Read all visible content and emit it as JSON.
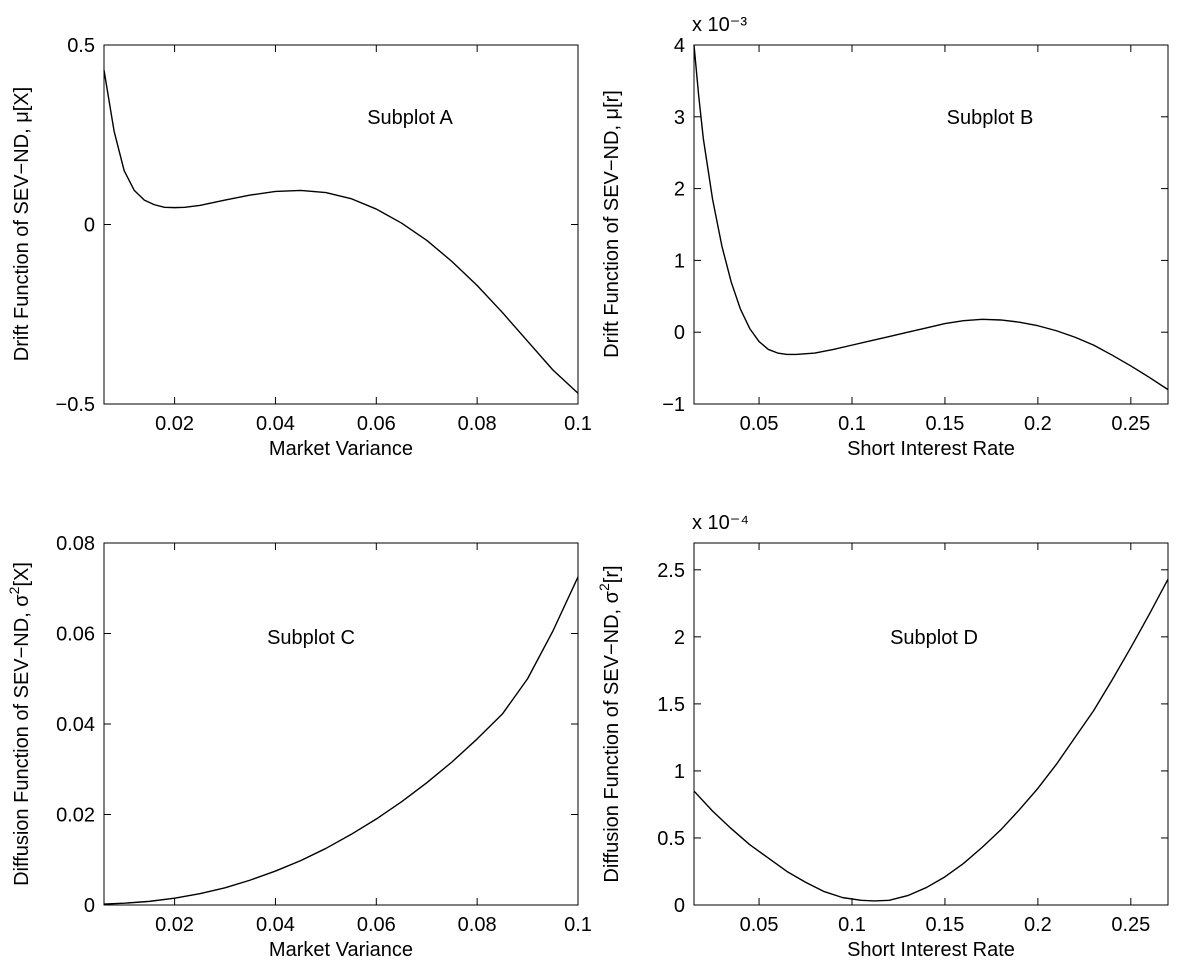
{
  "chart_data": [
    {
      "type": "line",
      "annotation": "Subplot A",
      "xlabel": "Market Variance",
      "ylabel": "Drift Function of SEV−ND, μ[X]",
      "ylabel_sup": "",
      "ylabel_tail": "",
      "exponent_label": "",
      "xlim": [
        0.006,
        0.1
      ],
      "ylim": [
        -0.5,
        0.5
      ],
      "xticks": [
        0.02,
        0.04,
        0.06,
        0.08,
        0.1
      ],
      "xtick_labels": [
        "0.02",
        "0.04",
        "0.06",
        "0.08",
        "0.1"
      ],
      "yticks": [
        -0.5,
        0,
        0.5
      ],
      "ytick_labels": [
        "−0.5",
        "0",
        "0.5"
      ],
      "grid": false,
      "series": [
        {
          "x": [
            0.006,
            0.008,
            0.01,
            0.012,
            0.014,
            0.016,
            0.018,
            0.02,
            0.022,
            0.025,
            0.03,
            0.035,
            0.04,
            0.045,
            0.05,
            0.055,
            0.06,
            0.065,
            0.07,
            0.075,
            0.08,
            0.085,
            0.09,
            0.095,
            0.1
          ],
          "y": [
            0.43,
            0.26,
            0.15,
            0.095,
            0.068,
            0.055,
            0.048,
            0.047,
            0.048,
            0.053,
            0.068,
            0.082,
            0.092,
            0.095,
            0.089,
            0.072,
            0.043,
            0.004,
            -0.044,
            -0.103,
            -0.17,
            -0.245,
            -0.325,
            -0.405,
            -0.47
          ]
        }
      ]
    },
    {
      "type": "line",
      "annotation": "Subplot B",
      "xlabel": "Short Interest Rate",
      "ylabel": "Drift Function of SEV−ND, μ[r]",
      "ylabel_sup": "",
      "ylabel_tail": "",
      "exponent_label": "x 10⁻³",
      "xlim": [
        0.015,
        0.27
      ],
      "ylim": [
        -1,
        4
      ],
      "xticks": [
        0.05,
        0.1,
        0.15,
        0.2,
        0.25
      ],
      "xtick_labels": [
        "0.05",
        "0.1",
        "0.15",
        "0.2",
        "0.25"
      ],
      "yticks": [
        -1,
        0,
        1,
        2,
        3,
        4
      ],
      "ytick_labels": [
        "−1",
        "0",
        "1",
        "2",
        "3",
        "4"
      ],
      "grid": false,
      "series": [
        {
          "x": [
            0.015,
            0.0175,
            0.02,
            0.025,
            0.03,
            0.035,
            0.04,
            0.045,
            0.05,
            0.055,
            0.06,
            0.065,
            0.07,
            0.08,
            0.09,
            0.1,
            0.11,
            0.12,
            0.13,
            0.14,
            0.15,
            0.16,
            0.17,
            0.18,
            0.19,
            0.2,
            0.21,
            0.22,
            0.23,
            0.24,
            0.25,
            0.26,
            0.27
          ],
          "y": [
            4.0,
            3.3,
            2.7,
            1.85,
            1.2,
            0.7,
            0.32,
            0.05,
            -0.13,
            -0.24,
            -0.29,
            -0.31,
            -0.31,
            -0.29,
            -0.24,
            -0.18,
            -0.12,
            -0.06,
            0.0,
            0.06,
            0.12,
            0.16,
            0.18,
            0.17,
            0.14,
            0.09,
            0.02,
            -0.07,
            -0.18,
            -0.32,
            -0.47,
            -0.63,
            -0.8
          ]
        }
      ]
    },
    {
      "type": "line",
      "annotation": "Subplot C",
      "xlabel": "Market Variance",
      "ylabel": "Diffusion Function of SEV−ND, σ",
      "ylabel_sup": "2",
      "ylabel_tail": "[X]",
      "exponent_label": "",
      "xlim": [
        0.006,
        0.1
      ],
      "ylim": [
        0,
        0.08
      ],
      "xticks": [
        0.02,
        0.04,
        0.06,
        0.08,
        0.1
      ],
      "xtick_labels": [
        "0.02",
        "0.04",
        "0.06",
        "0.08",
        "0.1"
      ],
      "yticks": [
        0,
        0.02,
        0.04,
        0.06,
        0.08
      ],
      "ytick_labels": [
        "0",
        "0.02",
        "0.04",
        "0.06",
        "0.08"
      ],
      "grid": false,
      "series": [
        {
          "x": [
            0.006,
            0.01,
            0.015,
            0.02,
            0.025,
            0.03,
            0.035,
            0.04,
            0.045,
            0.05,
            0.055,
            0.06,
            0.065,
            0.07,
            0.075,
            0.08,
            0.085,
            0.09,
            0.095,
            0.1
          ],
          "y": [
            0.0002,
            0.0004,
            0.0008,
            0.0015,
            0.0025,
            0.0038,
            0.0055,
            0.0075,
            0.0098,
            0.0125,
            0.0156,
            0.019,
            0.0228,
            0.027,
            0.0316,
            0.0367,
            0.0422,
            0.05,
            0.0605,
            0.0725
          ]
        }
      ]
    },
    {
      "type": "line",
      "annotation": "Subplot D",
      "xlabel": "Short Interest Rate",
      "ylabel": "Diffusion Function of SEV−ND, σ",
      "ylabel_sup": "2",
      "ylabel_tail": "[r]",
      "exponent_label": "x 10⁻⁴",
      "xlim": [
        0.015,
        0.27
      ],
      "ylim": [
        0,
        2.7
      ],
      "xticks": [
        0.05,
        0.1,
        0.15,
        0.2,
        0.25
      ],
      "xtick_labels": [
        "0.05",
        "0.1",
        "0.15",
        "0.2",
        "0.25"
      ],
      "yticks": [
        0,
        0.5,
        1,
        1.5,
        2,
        2.5
      ],
      "ytick_labels": [
        "0",
        "0.5",
        "1",
        "1.5",
        "2",
        "2.5"
      ],
      "grid": false,
      "series": [
        {
          "x": [
            0.015,
            0.025,
            0.035,
            0.045,
            0.055,
            0.065,
            0.075,
            0.085,
            0.095,
            0.105,
            0.112,
            0.12,
            0.13,
            0.14,
            0.15,
            0.16,
            0.17,
            0.18,
            0.19,
            0.2,
            0.21,
            0.22,
            0.23,
            0.24,
            0.25,
            0.26,
            0.27
          ],
          "y": [
            0.85,
            0.7,
            0.57,
            0.45,
            0.35,
            0.25,
            0.17,
            0.1,
            0.055,
            0.035,
            0.03,
            0.035,
            0.07,
            0.13,
            0.21,
            0.31,
            0.43,
            0.56,
            0.71,
            0.87,
            1.05,
            1.25,
            1.45,
            1.68,
            1.92,
            2.17,
            2.43
          ]
        }
      ]
    }
  ]
}
